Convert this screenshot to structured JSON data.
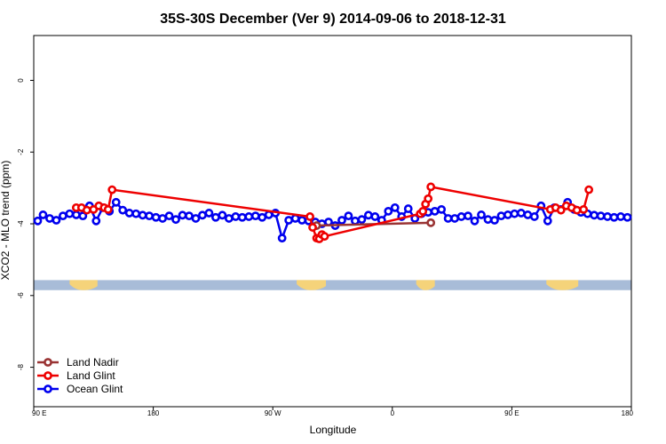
{
  "chart_data": {
    "type": "line",
    "title": "35S-30S December (Ver 9)   2014-09-06 to 2018-12-31",
    "xlabel": "Longitude",
    "ylabel": "XCO2 - MLO trend (ppm)",
    "x_ticks": [
      {
        "value": 90,
        "label": "90 E"
      },
      {
        "value": 180,
        "label": "180"
      },
      {
        "value": 270,
        "label": "90 W"
      },
      {
        "value": 360,
        "label": "0"
      },
      {
        "value": 450,
        "label": "90 E"
      },
      {
        "value": 540,
        "label": "180"
      }
    ],
    "y_ticks": [
      {
        "value": 0,
        "label": "0"
      },
      {
        "value": -2,
        "label": "-2"
      },
      {
        "value": -4,
        "label": "-4"
      },
      {
        "value": -6,
        "label": "-6"
      },
      {
        "value": -8,
        "label": "-8"
      }
    ],
    "xlim": [
      90,
      540
    ],
    "ylim": [
      -9.1,
      1.25
    ],
    "legend_position": "bottom-left",
    "land_band": {
      "y_top": -5.57,
      "y_bottom": -5.85,
      "ocean_color": "#a8bcd8",
      "land_color": "#f5d37a",
      "land_segments": [
        [
          117,
          138
        ],
        [
          288,
          310
        ],
        [
          378,
          392
        ],
        [
          476,
          500
        ]
      ]
    },
    "series": [
      {
        "name": "Land Nadir",
        "color": "#993333",
        "x": [
          303,
          389
        ],
        "y": [
          -4.05,
          -3.97
        ]
      },
      {
        "name": "Land Glint",
        "color": "#ee0000",
        "x": [
          122,
          126,
          130,
          135,
          139,
          143,
          146,
          149,
          298,
          300,
          303,
          305,
          307,
          309,
          381,
          383,
          385,
          387,
          389,
          479,
          483,
          487,
          491,
          495,
          499,
          504,
          508
        ],
        "y": [
          -3.55,
          -3.55,
          -3.62,
          -3.6,
          -3.5,
          -3.55,
          -3.6,
          -3.05,
          -3.8,
          -4.1,
          -4.4,
          -4.42,
          -4.3,
          -4.35,
          -3.72,
          -3.65,
          -3.45,
          -3.3,
          -2.97,
          -3.6,
          -3.55,
          -3.62,
          -3.5,
          -3.55,
          -3.62,
          -3.6,
          -3.05
        ]
      },
      {
        "name": "Ocean Glint",
        "color": "#0000ee",
        "x": [
          93,
          97,
          102,
          107,
          112,
          117,
          122,
          127,
          132,
          137,
          142,
          147,
          152,
          157,
          162,
          167,
          172,
          177,
          182,
          187,
          192,
          197,
          202,
          207,
          212,
          217,
          222,
          227,
          232,
          237,
          242,
          247,
          252,
          257,
          262,
          267,
          272,
          277,
          282,
          287,
          292,
          297,
          302,
          307,
          312,
          317,
          322,
          327,
          332,
          337,
          342,
          347,
          352,
          357,
          362,
          367,
          372,
          377,
          382,
          387,
          392,
          397,
          402,
          407,
          412,
          417,
          422,
          427,
          432,
          437,
          442,
          447,
          452,
          457,
          462,
          467,
          472,
          477,
          482,
          487,
          492,
          497,
          502,
          507,
          512,
          517,
          522,
          527,
          532,
          537
        ],
        "y": [
          -3.92,
          -3.75,
          -3.85,
          -3.9,
          -3.78,
          -3.72,
          -3.75,
          -3.78,
          -3.5,
          -3.92,
          -3.55,
          -3.65,
          -3.4,
          -3.62,
          -3.7,
          -3.72,
          -3.76,
          -3.78,
          -3.82,
          -3.85,
          -3.78,
          -3.88,
          -3.76,
          -3.78,
          -3.85,
          -3.76,
          -3.7,
          -3.82,
          -3.76,
          -3.85,
          -3.8,
          -3.82,
          -3.8,
          -3.78,
          -3.82,
          -3.75,
          -3.7,
          -4.4,
          -3.9,
          -3.85,
          -3.9,
          -3.92,
          -3.95,
          -4.0,
          -3.95,
          -4.05,
          -3.9,
          -3.78,
          -3.92,
          -3.88,
          -3.76,
          -3.8,
          -3.9,
          -3.65,
          -3.55,
          -3.8,
          -3.58,
          -3.85,
          -3.72,
          -3.68,
          -3.65,
          -3.6,
          -3.85,
          -3.85,
          -3.8,
          -3.78,
          -3.92,
          -3.75,
          -3.88,
          -3.9,
          -3.78,
          -3.75,
          -3.72,
          -3.7,
          -3.75,
          -3.8,
          -3.5,
          -3.92,
          -3.55,
          -3.6,
          -3.4,
          -3.6,
          -3.68,
          -3.72,
          -3.76,
          -3.78,
          -3.8,
          -3.82,
          -3.8,
          -3.82
        ]
      }
    ]
  }
}
